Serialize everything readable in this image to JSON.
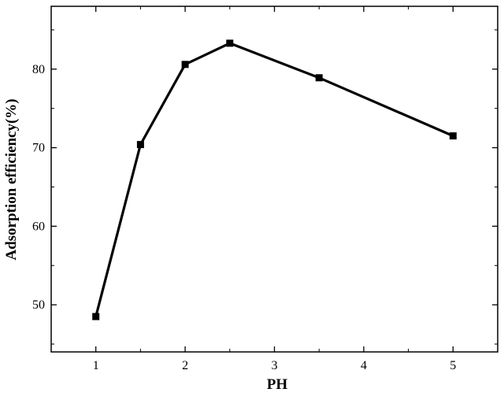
{
  "chart_data": {
    "type": "line",
    "xlabel": "PH",
    "ylabel": "Adsorption efficiency(%)",
    "xlim": [
      0.5,
      5.5
    ],
    "ylim": [
      44,
      88
    ],
    "x_ticks": [
      1,
      2,
      3,
      4,
      5
    ],
    "y_ticks": [
      50,
      60,
      70,
      80
    ],
    "grid": false,
    "series": [
      {
        "x": [
          1,
          1.5,
          2,
          2.5,
          3.5,
          5
        ],
        "values": [
          48.5,
          70.4,
          80.6,
          83.3,
          78.9,
          71.5
        ],
        "color": "#000000",
        "marker": "square"
      }
    ]
  }
}
